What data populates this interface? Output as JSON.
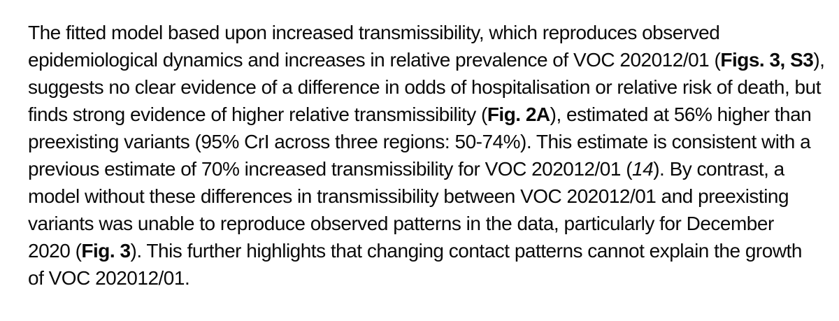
{
  "document": {
    "background": "#ffffff",
    "text_color": "#0a0a0a",
    "lines": [
      {
        "segments": [
          {
            "text": "The fitted model based upon increased transmissibility, which reproduces observed",
            "style": "normal"
          }
        ]
      },
      {
        "segments": [
          {
            "text": "epidemiological dynamics and increases in relative prevalence of VOC 202012/01 (",
            "style": "normal"
          },
          {
            "text": "Figs. 3, S3",
            "style": "bold"
          },
          {
            "text": "),",
            "style": "normal"
          }
        ]
      },
      {
        "segments": [
          {
            "text": "suggests no clear evidence of a difference in odds of hospitalisation or relative risk of death, but",
            "style": "normal"
          }
        ]
      },
      {
        "segments": [
          {
            "text": "finds strong evidence of higher relative transmissibility (",
            "style": "normal"
          },
          {
            "text": "Fig. 2A",
            "style": "bold"
          },
          {
            "text": "), estimated at 56% higher than",
            "style": "normal"
          }
        ]
      },
      {
        "segments": [
          {
            "text": "preexisting variants (95% CrI across three regions: 50-74%). This estimate is consistent with a",
            "style": "normal"
          }
        ]
      },
      {
        "segments": [
          {
            "text": "previous estimate of 70% increased transmissibility for VOC 202012/01 (",
            "style": "normal"
          },
          {
            "text": "14",
            "style": "italic"
          },
          {
            "text": "). By contrast, a",
            "style": "normal"
          }
        ]
      },
      {
        "segments": [
          {
            "text": "model without these differences in transmissibility between VOC 202012/01 and preexisting",
            "style": "normal"
          }
        ]
      },
      {
        "segments": [
          {
            "text": "variants was unable to reproduce observed patterns in the data, particularly for December",
            "style": "normal"
          }
        ]
      },
      {
        "segments": [
          {
            "text": "2020 (",
            "style": "normal"
          },
          {
            "text": "Fig. 3",
            "style": "bold"
          },
          {
            "text": "). This further highlights that changing contact patterns cannot explain the growth",
            "style": "normal"
          }
        ]
      },
      {
        "segments": [
          {
            "text": "of VOC 202012/01.",
            "style": "normal"
          }
        ]
      }
    ]
  }
}
